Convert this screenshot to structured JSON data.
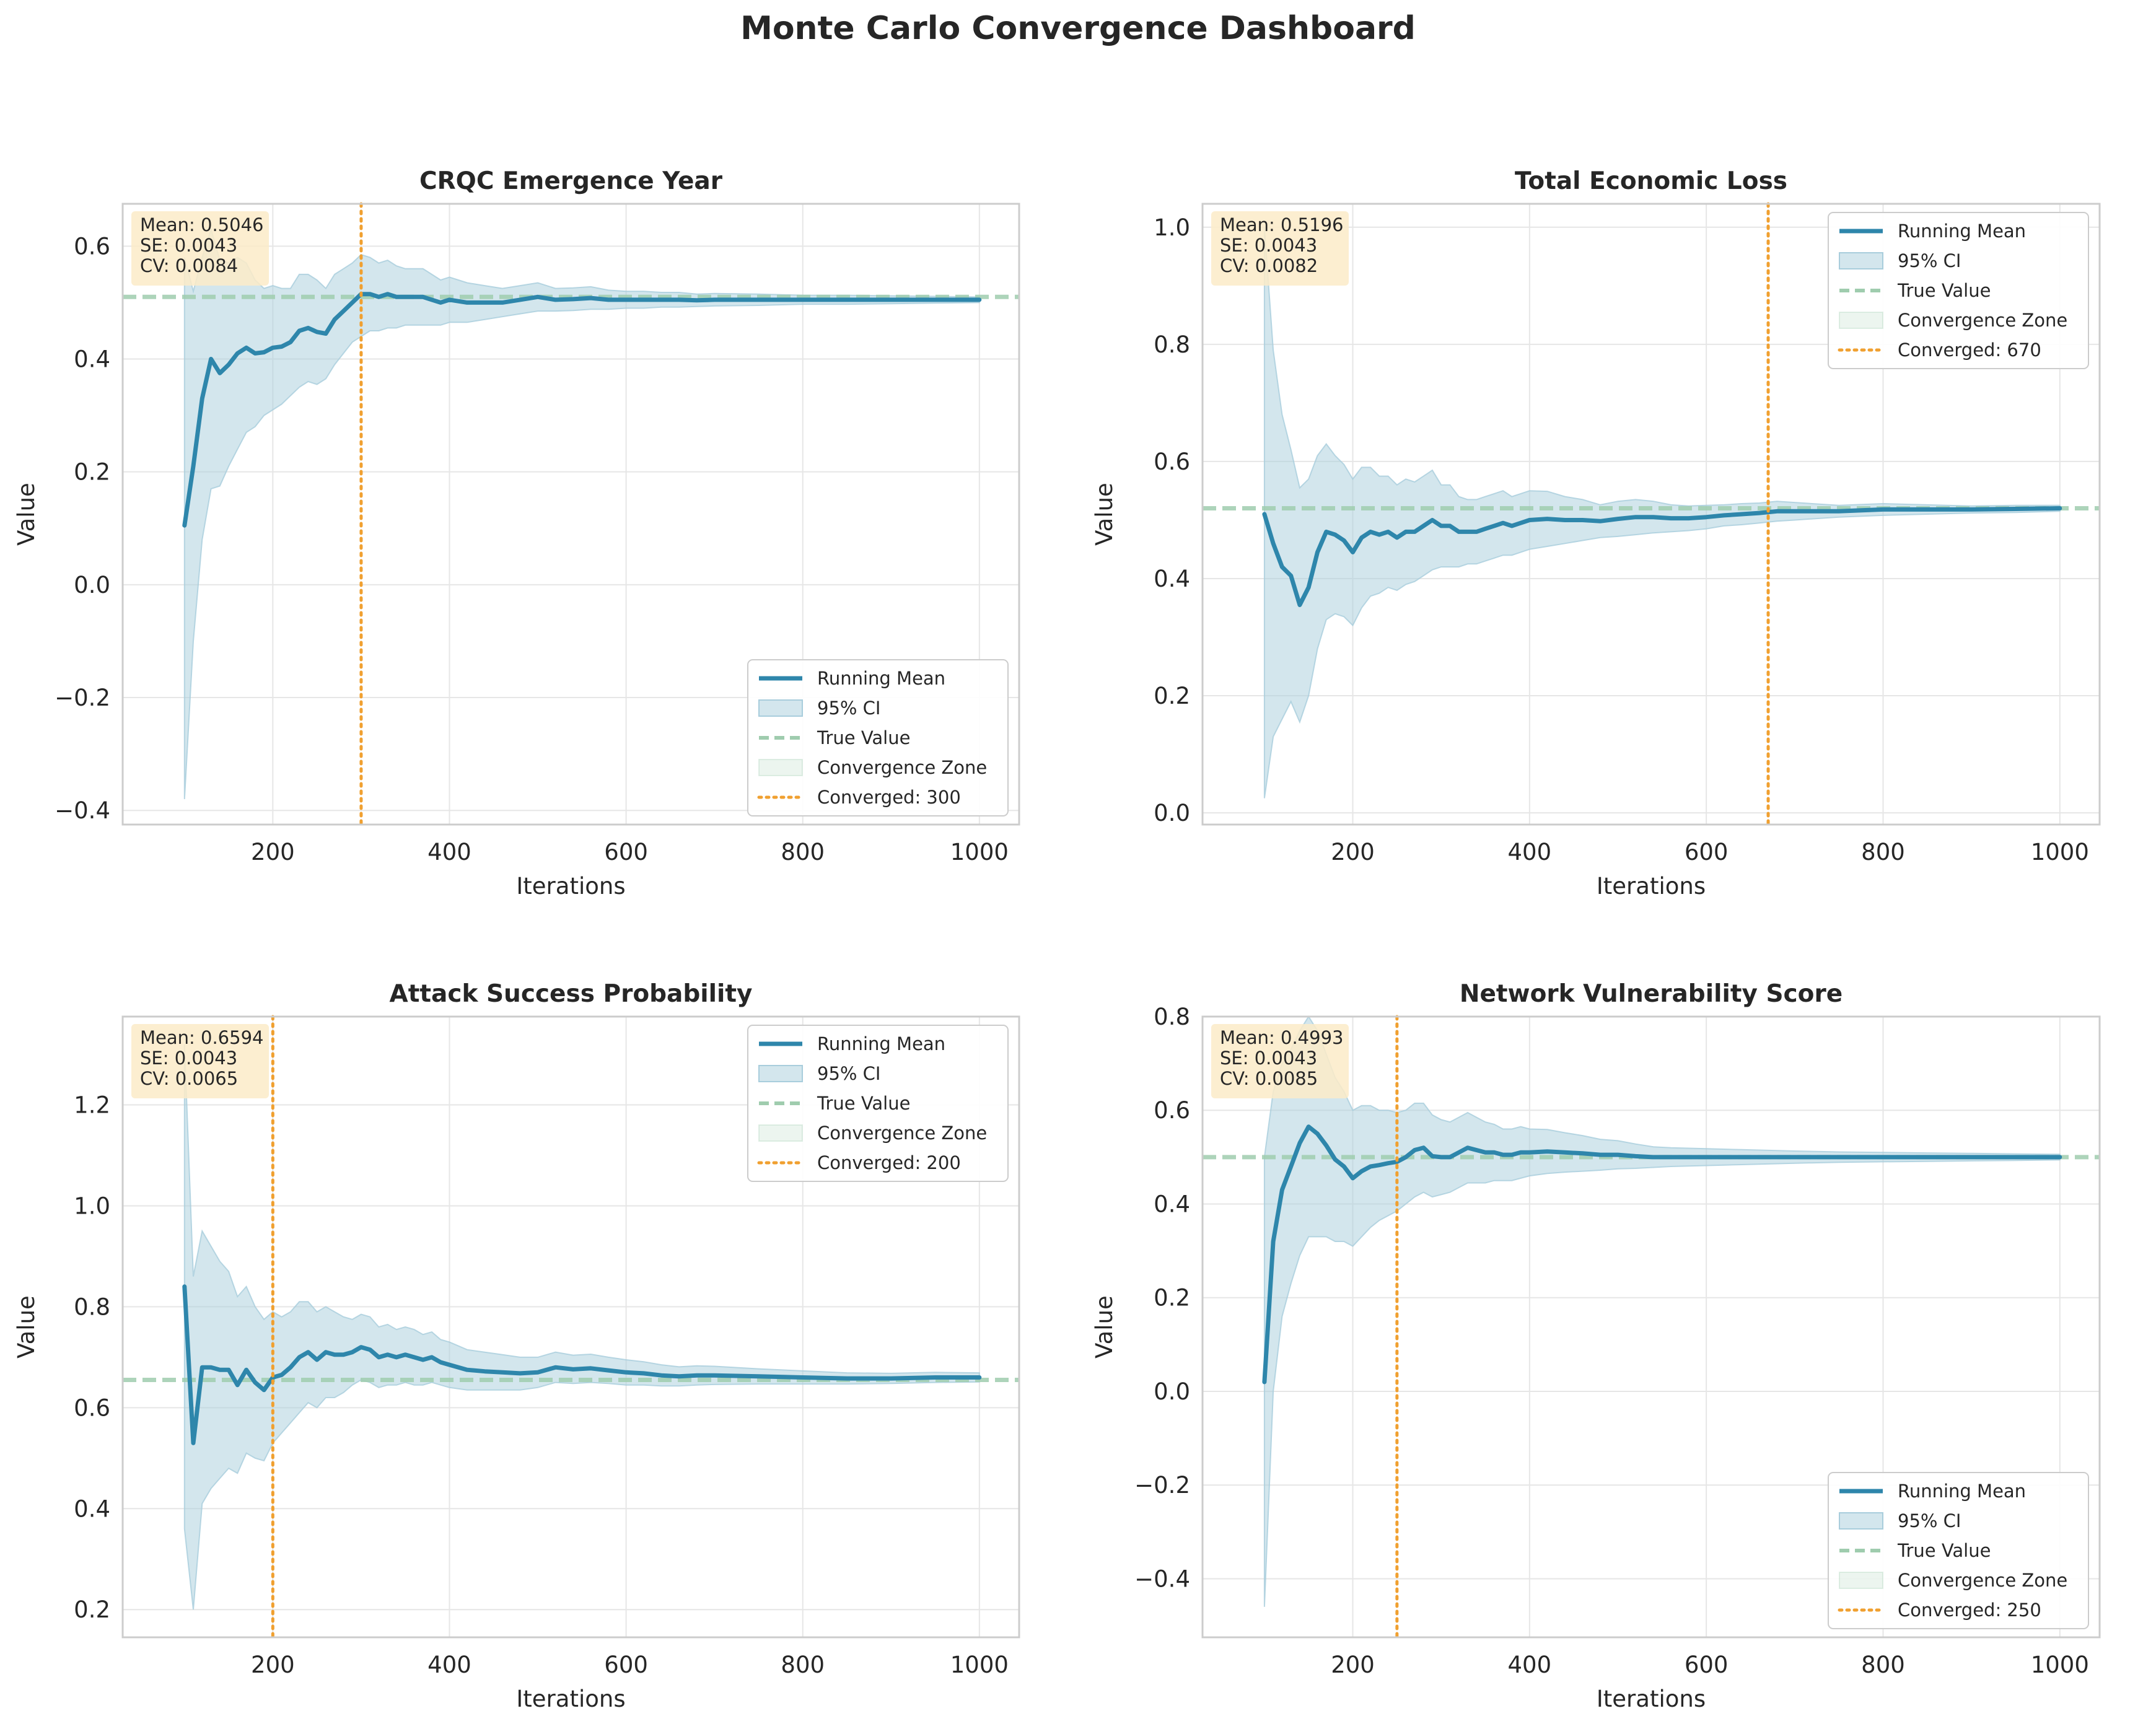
{
  "title": "Monte Carlo Convergence Dashboard",
  "colors": {
    "mean_line": "#2e86ab",
    "ci_fill": "#a8cddc",
    "true_value": "#9fccae",
    "converged_line": "#f0a030",
    "stats_box": "#fbebc8",
    "grid": "#e6e6e6",
    "spine": "#cccccc"
  },
  "legend_labels": [
    "Running Mean",
    "95% CI",
    "True Value",
    "Convergence Zone",
    "Converged: {iter}"
  ],
  "chart_data": [
    {
      "type": "line",
      "title": "CRQC Emergence Year",
      "xlabel": "Iterations",
      "ylabel": "Value",
      "xlim": [
        30,
        1045
      ],
      "ylim": [
        -0.425,
        0.675
      ],
      "xticks": [
        200,
        400,
        600,
        800,
        1000
      ],
      "xtick_labels": [
        "200",
        "400",
        "600",
        "800",
        "1000"
      ],
      "yticks": [
        -0.4,
        -0.2,
        0.0,
        0.2,
        0.4,
        0.6
      ],
      "ytick_labels": [
        "−0.4",
        "−0.2",
        "0.0",
        "0.2",
        "0.4",
        "0.6"
      ],
      "true_value": 0.51,
      "converged_at": 300,
      "legend_position": "lower-right",
      "grid": true,
      "stats": [
        "Mean: 0.5046",
        "SE: 0.0043",
        "CV: 0.0084"
      ],
      "x": [
        100,
        110,
        120,
        130,
        140,
        150,
        160,
        170,
        180,
        190,
        200,
        210,
        220,
        230,
        240,
        250,
        260,
        270,
        280,
        290,
        300,
        310,
        320,
        330,
        340,
        350,
        360,
        370,
        380,
        390,
        400,
        420,
        440,
        460,
        480,
        500,
        520,
        540,
        560,
        580,
        600,
        620,
        640,
        660,
        680,
        700,
        750,
        800,
        850,
        900,
        950,
        1000
      ],
      "mean": [
        0.105,
        0.21,
        0.33,
        0.4,
        0.375,
        0.39,
        0.41,
        0.42,
        0.41,
        0.412,
        0.42,
        0.422,
        0.43,
        0.45,
        0.455,
        0.448,
        0.445,
        0.47,
        0.485,
        0.5,
        0.515,
        0.515,
        0.51,
        0.515,
        0.51,
        0.51,
        0.51,
        0.51,
        0.505,
        0.5,
        0.505,
        0.5,
        0.5,
        0.5,
        0.505,
        0.51,
        0.505,
        0.506,
        0.508,
        0.505,
        0.505,
        0.505,
        0.505,
        0.505,
        0.504,
        0.505,
        0.505,
        0.505,
        0.505,
        0.505,
        0.505,
        0.505
      ],
      "ci_lower": [
        -0.38,
        -0.1,
        0.08,
        0.17,
        0.175,
        0.21,
        0.24,
        0.27,
        0.28,
        0.3,
        0.31,
        0.32,
        0.335,
        0.35,
        0.36,
        0.355,
        0.365,
        0.39,
        0.41,
        0.43,
        0.44,
        0.45,
        0.45,
        0.455,
        0.455,
        0.46,
        0.46,
        0.46,
        0.46,
        0.46,
        0.465,
        0.465,
        0.47,
        0.475,
        0.48,
        0.485,
        0.485,
        0.486,
        0.488,
        0.488,
        0.49,
        0.49,
        0.492,
        0.492,
        0.493,
        0.494,
        0.495,
        0.497,
        0.497,
        0.498,
        0.499,
        0.5
      ],
      "ci_upper": [
        0.58,
        0.52,
        0.58,
        0.63,
        0.575,
        0.57,
        0.58,
        0.57,
        0.54,
        0.525,
        0.53,
        0.525,
        0.525,
        0.55,
        0.55,
        0.54,
        0.525,
        0.55,
        0.56,
        0.57,
        0.585,
        0.58,
        0.57,
        0.575,
        0.565,
        0.56,
        0.56,
        0.56,
        0.55,
        0.54,
        0.545,
        0.535,
        0.53,
        0.525,
        0.53,
        0.535,
        0.525,
        0.526,
        0.528,
        0.522,
        0.52,
        0.52,
        0.518,
        0.518,
        0.515,
        0.516,
        0.515,
        0.513,
        0.513,
        0.512,
        0.511,
        0.51
      ]
    },
    {
      "type": "line",
      "title": "Total Economic Loss",
      "xlabel": "Iterations",
      "ylabel": "Value",
      "xlim": [
        30,
        1045
      ],
      "ylim": [
        -0.02,
        1.04
      ],
      "xticks": [
        200,
        400,
        600,
        800,
        1000
      ],
      "xtick_labels": [
        "200",
        "400",
        "600",
        "800",
        "1000"
      ],
      "yticks": [
        0.0,
        0.2,
        0.4,
        0.6,
        0.8,
        1.0
      ],
      "ytick_labels": [
        "0.0",
        "0.2",
        "0.4",
        "0.6",
        "0.8",
        "1.0"
      ],
      "true_value": 0.52,
      "converged_at": 670,
      "legend_position": "upper-right",
      "grid": true,
      "stats": [
        "Mean: 0.5196",
        "SE: 0.0043",
        "CV: 0.0082"
      ],
      "x": [
        100,
        110,
        120,
        130,
        140,
        150,
        160,
        170,
        180,
        190,
        200,
        210,
        220,
        230,
        240,
        250,
        260,
        270,
        280,
        290,
        300,
        310,
        320,
        330,
        340,
        350,
        360,
        370,
        380,
        390,
        400,
        420,
        440,
        460,
        480,
        500,
        520,
        540,
        560,
        580,
        600,
        620,
        640,
        660,
        680,
        700,
        750,
        800,
        850,
        900,
        950,
        1000
      ],
      "mean": [
        0.51,
        0.46,
        0.42,
        0.405,
        0.355,
        0.385,
        0.445,
        0.48,
        0.475,
        0.465,
        0.445,
        0.47,
        0.48,
        0.475,
        0.48,
        0.47,
        0.48,
        0.48,
        0.49,
        0.5,
        0.49,
        0.49,
        0.48,
        0.48,
        0.48,
        0.485,
        0.49,
        0.495,
        0.49,
        0.495,
        0.5,
        0.502,
        0.5,
        0.5,
        0.498,
        0.502,
        0.505,
        0.505,
        0.503,
        0.503,
        0.505,
        0.508,
        0.51,
        0.512,
        0.515,
        0.515,
        0.515,
        0.518,
        0.518,
        0.518,
        0.519,
        0.52
      ],
      "ci_lower": [
        0.025,
        0.13,
        0.16,
        0.19,
        0.155,
        0.2,
        0.28,
        0.33,
        0.34,
        0.335,
        0.32,
        0.35,
        0.37,
        0.375,
        0.385,
        0.38,
        0.39,
        0.395,
        0.405,
        0.415,
        0.42,
        0.42,
        0.42,
        0.425,
        0.425,
        0.43,
        0.435,
        0.44,
        0.44,
        0.445,
        0.45,
        0.455,
        0.46,
        0.465,
        0.47,
        0.472,
        0.475,
        0.478,
        0.48,
        0.482,
        0.485,
        0.49,
        0.492,
        0.495,
        0.498,
        0.5,
        0.505,
        0.508,
        0.51,
        0.512,
        0.513,
        0.515
      ],
      "ci_upper": [
        1.0,
        0.79,
        0.68,
        0.62,
        0.555,
        0.57,
        0.61,
        0.63,
        0.61,
        0.595,
        0.57,
        0.59,
        0.59,
        0.575,
        0.575,
        0.56,
        0.57,
        0.565,
        0.575,
        0.585,
        0.56,
        0.56,
        0.54,
        0.535,
        0.535,
        0.54,
        0.545,
        0.55,
        0.54,
        0.545,
        0.55,
        0.549,
        0.54,
        0.535,
        0.526,
        0.532,
        0.535,
        0.532,
        0.526,
        0.524,
        0.525,
        0.526,
        0.528,
        0.529,
        0.532,
        0.53,
        0.525,
        0.528,
        0.526,
        0.524,
        0.525,
        0.525
      ]
    },
    {
      "type": "line",
      "title": "Attack Success Probability",
      "xlabel": "Iterations",
      "ylabel": "Value",
      "xlim": [
        30,
        1045
      ],
      "ylim": [
        0.145,
        1.375
      ],
      "xticks": [
        200,
        400,
        600,
        800,
        1000
      ],
      "xtick_labels": [
        "200",
        "400",
        "600",
        "800",
        "1000"
      ],
      "yticks": [
        0.2,
        0.4,
        0.6,
        0.8,
        1.0,
        1.2
      ],
      "ytick_labels": [
        "0.2",
        "0.4",
        "0.6",
        "0.8",
        "1.0",
        "1.2"
      ],
      "true_value": 0.655,
      "converged_at": 200,
      "legend_position": "upper-right",
      "grid": true,
      "stats": [
        "Mean: 0.6594",
        "SE: 0.0043",
        "CV: 0.0065"
      ],
      "x": [
        100,
        110,
        120,
        130,
        140,
        150,
        160,
        170,
        180,
        190,
        200,
        210,
        220,
        230,
        240,
        250,
        260,
        270,
        280,
        290,
        300,
        310,
        320,
        330,
        340,
        350,
        360,
        370,
        380,
        390,
        400,
        420,
        440,
        460,
        480,
        500,
        520,
        540,
        560,
        580,
        600,
        620,
        640,
        660,
        680,
        700,
        750,
        800,
        850,
        900,
        950,
        1000
      ],
      "mean": [
        0.84,
        0.53,
        0.68,
        0.68,
        0.675,
        0.675,
        0.645,
        0.675,
        0.65,
        0.635,
        0.66,
        0.665,
        0.68,
        0.7,
        0.71,
        0.695,
        0.71,
        0.705,
        0.705,
        0.71,
        0.72,
        0.715,
        0.7,
        0.705,
        0.7,
        0.705,
        0.7,
        0.695,
        0.7,
        0.69,
        0.685,
        0.675,
        0.672,
        0.67,
        0.668,
        0.67,
        0.68,
        0.676,
        0.678,
        0.674,
        0.67,
        0.668,
        0.664,
        0.662,
        0.664,
        0.664,
        0.662,
        0.66,
        0.658,
        0.658,
        0.66,
        0.66
      ],
      "ci_lower": [
        0.36,
        0.2,
        0.41,
        0.44,
        0.46,
        0.48,
        0.47,
        0.51,
        0.5,
        0.495,
        0.53,
        0.55,
        0.57,
        0.59,
        0.61,
        0.6,
        0.62,
        0.62,
        0.63,
        0.645,
        0.655,
        0.65,
        0.64,
        0.645,
        0.645,
        0.65,
        0.645,
        0.645,
        0.65,
        0.645,
        0.64,
        0.635,
        0.635,
        0.635,
        0.635,
        0.64,
        0.65,
        0.648,
        0.65,
        0.648,
        0.645,
        0.645,
        0.643,
        0.643,
        0.645,
        0.646,
        0.647,
        0.647,
        0.647,
        0.648,
        0.65,
        0.651
      ],
      "ci_upper": [
        1.32,
        0.86,
        0.95,
        0.92,
        0.89,
        0.87,
        0.82,
        0.84,
        0.8,
        0.775,
        0.79,
        0.78,
        0.79,
        0.81,
        0.81,
        0.79,
        0.8,
        0.79,
        0.78,
        0.775,
        0.785,
        0.78,
        0.76,
        0.765,
        0.755,
        0.76,
        0.755,
        0.745,
        0.75,
        0.735,
        0.73,
        0.715,
        0.71,
        0.705,
        0.7,
        0.7,
        0.71,
        0.704,
        0.706,
        0.7,
        0.695,
        0.691,
        0.685,
        0.681,
        0.683,
        0.682,
        0.677,
        0.673,
        0.669,
        0.668,
        0.67,
        0.669
      ]
    },
    {
      "type": "line",
      "title": "Network Vulnerability Score",
      "xlabel": "Iterations",
      "ylabel": "Value",
      "xlim": [
        30,
        1045
      ],
      "ylim": [
        -0.525,
        0.8
      ],
      "xticks": [
        200,
        400,
        600,
        800,
        1000
      ],
      "xtick_labels": [
        "200",
        "400",
        "600",
        "800",
        "1000"
      ],
      "yticks": [
        -0.4,
        -0.2,
        0.0,
        0.2,
        0.4,
        0.6,
        0.8
      ],
      "ytick_labels": [
        "−0.4",
        "−0.2",
        "0.0",
        "0.2",
        "0.4",
        "0.6",
        "0.8"
      ],
      "true_value": 0.5,
      "converged_at": 250,
      "legend_position": "lower-right",
      "grid": true,
      "stats": [
        "Mean: 0.4993",
        "SE: 0.0043",
        "CV: 0.0085"
      ],
      "x": [
        100,
        110,
        120,
        130,
        140,
        150,
        160,
        170,
        180,
        190,
        200,
        210,
        220,
        230,
        240,
        250,
        260,
        270,
        280,
        290,
        300,
        310,
        320,
        330,
        340,
        350,
        360,
        370,
        380,
        390,
        400,
        420,
        440,
        460,
        480,
        500,
        520,
        540,
        560,
        580,
        600,
        620,
        640,
        660,
        680,
        700,
        750,
        800,
        850,
        900,
        950,
        1000
      ],
      "mean": [
        0.02,
        0.32,
        0.43,
        0.48,
        0.53,
        0.565,
        0.55,
        0.525,
        0.495,
        0.48,
        0.455,
        0.47,
        0.48,
        0.483,
        0.487,
        0.49,
        0.5,
        0.515,
        0.52,
        0.502,
        0.5,
        0.5,
        0.51,
        0.52,
        0.515,
        0.51,
        0.51,
        0.505,
        0.505,
        0.51,
        0.51,
        0.512,
        0.51,
        0.508,
        0.505,
        0.505,
        0.502,
        0.5,
        0.5,
        0.5,
        0.5,
        0.5,
        0.5,
        0.5,
        0.5,
        0.5,
        0.5,
        0.5,
        0.5,
        0.5,
        0.5,
        0.5
      ],
      "ci_lower": [
        -0.46,
        0.0,
        0.16,
        0.23,
        0.29,
        0.33,
        0.33,
        0.33,
        0.32,
        0.32,
        0.31,
        0.33,
        0.35,
        0.365,
        0.375,
        0.385,
        0.4,
        0.415,
        0.425,
        0.415,
        0.42,
        0.425,
        0.435,
        0.445,
        0.445,
        0.445,
        0.45,
        0.45,
        0.45,
        0.455,
        0.46,
        0.465,
        0.468,
        0.47,
        0.472,
        0.475,
        0.476,
        0.478,
        0.48,
        0.481,
        0.482,
        0.483,
        0.484,
        0.485,
        0.486,
        0.487,
        0.489,
        0.49,
        0.491,
        0.492,
        0.493,
        0.494
      ],
      "ci_upper": [
        0.5,
        0.64,
        0.7,
        0.73,
        0.77,
        0.8,
        0.77,
        0.72,
        0.67,
        0.64,
        0.6,
        0.61,
        0.61,
        0.6,
        0.6,
        0.595,
        0.6,
        0.615,
        0.615,
        0.59,
        0.58,
        0.575,
        0.585,
        0.595,
        0.585,
        0.575,
        0.57,
        0.56,
        0.56,
        0.565,
        0.56,
        0.559,
        0.552,
        0.546,
        0.538,
        0.535,
        0.528,
        0.522,
        0.52,
        0.519,
        0.518,
        0.517,
        0.516,
        0.515,
        0.514,
        0.513,
        0.511,
        0.51,
        0.509,
        0.508,
        0.507,
        0.506
      ]
    }
  ]
}
